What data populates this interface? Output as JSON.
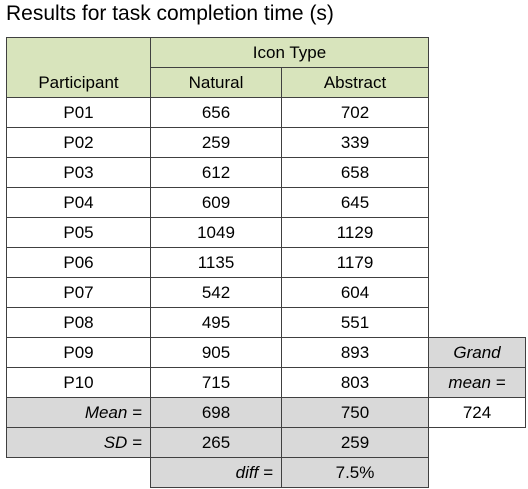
{
  "title": "Results for task completion time (s)",
  "table": {
    "group_header": "Icon Type",
    "columns": [
      "Participant",
      "Natural",
      "Abstract"
    ],
    "rows": [
      [
        "P01",
        656,
        702
      ],
      [
        "P02",
        259,
        339
      ],
      [
        "P03",
        612,
        658
      ],
      [
        "P04",
        609,
        645
      ],
      [
        "P05",
        1049,
        1129
      ],
      [
        "P06",
        1135,
        1179
      ],
      [
        "P07",
        542,
        604
      ],
      [
        "P08",
        495,
        551
      ],
      [
        "P09",
        905,
        893
      ],
      [
        "P10",
        715,
        803
      ]
    ],
    "mean": {
      "label": "Mean =",
      "values": [
        698,
        750
      ]
    },
    "sd": {
      "label": "SD =",
      "values": [
        265,
        259
      ]
    },
    "diff": {
      "label": "diff =",
      "value": "7.5%"
    },
    "grand_mean": {
      "label": [
        "Grand",
        "mean ="
      ],
      "value": 724
    }
  }
}
